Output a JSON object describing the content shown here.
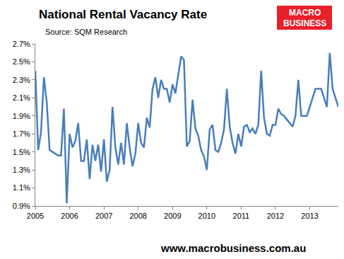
{
  "chart_data": {
    "type": "line",
    "title": "National Rental Vacancy Rate",
    "subtitle": "Source: SQM Research",
    "annotations": [
      "MACRO",
      "BUSINESS",
      "www.macrobusiness.com.au"
    ],
    "color": "#4a7ebb",
    "grid": false,
    "categories": [
      "2005",
      null,
      null,
      null,
      null,
      null,
      null,
      null,
      null,
      null,
      null,
      null,
      "2006",
      null,
      null,
      null,
      null,
      null,
      null,
      null,
      null,
      null,
      null,
      null,
      "2007",
      null,
      null,
      null,
      null,
      null,
      null,
      null,
      null,
      null,
      null,
      null,
      "2008",
      null,
      null,
      null,
      null,
      null,
      null,
      null,
      null,
      null,
      null,
      null,
      "2009",
      null,
      null,
      null,
      null,
      null,
      null,
      null,
      null,
      null,
      null,
      null,
      "2010",
      null,
      null,
      null,
      null,
      null,
      null,
      null,
      null,
      null,
      null,
      null,
      "2011",
      null,
      null,
      null,
      null,
      null,
      null,
      null,
      null,
      null,
      null,
      null,
      "2012",
      null,
      null,
      null,
      null,
      null,
      null,
      null,
      null,
      null,
      null,
      null,
      "2013",
      null,
      null,
      null,
      null,
      null,
      null,
      null,
      null,
      null,
      null
    ],
    "values": [
      2.4,
      1.52,
      1.72,
      2.33,
      2.05,
      1.52,
      1.5,
      1.48,
      1.46,
      1.46,
      1.98,
      0.93,
      1.7,
      1.55,
      1.62,
      1.82,
      1.4,
      1.4,
      1.64,
      1.2,
      1.58,
      1.4,
      1.58,
      1.28,
      1.64,
      1.17,
      1.3,
      2.0,
      1.55,
      1.36,
      1.6,
      1.36,
      1.82,
      1.55,
      1.34,
      1.48,
      1.82,
      1.6,
      1.55,
      1.88,
      1.77,
      2.2,
      2.33,
      2.1,
      2.3,
      2.2,
      2.2,
      2.05,
      2.25,
      2.15,
      2.35,
      2.56,
      2.52,
      1.56,
      1.62,
      2.08,
      1.76,
      1.68,
      1.52,
      1.45,
      1.3,
      1.75,
      1.8,
      1.52,
      1.5,
      1.6,
      1.75,
      2.2,
      1.78,
      1.6,
      1.48,
      1.7,
      1.56,
      1.78,
      1.8,
      1.72,
      1.76,
      1.7,
      1.8,
      2.4,
      1.88,
      1.7,
      1.68,
      1.8,
      1.8,
      1.98,
      1.92,
      1.9,
      1.86,
      1.82,
      1.78,
      1.9,
      2.3,
      1.9,
      1.9,
      1.9,
      2.0,
      2.1,
      2.2,
      2.2,
      2.2,
      2.1,
      2.0,
      2.6,
      2.2,
      2.1,
      2.0
    ],
    "ylim": [
      0.9,
      2.7
    ],
    "yticks": [
      {
        "value": 0.9,
        "label": "0.9%"
      },
      {
        "value": 1.1,
        "label": "1.1%"
      },
      {
        "value": 1.3,
        "label": "1.3%"
      },
      {
        "value": 1.5,
        "label": "1.5%"
      },
      {
        "value": 1.7,
        "label": "1.7%"
      },
      {
        "value": 1.9,
        "label": "1.9%"
      },
      {
        "value": 2.1,
        "label": "2.1%"
      },
      {
        "value": 2.3,
        "label": "2.3%"
      },
      {
        "value": 2.5,
        "label": "2.5%"
      },
      {
        "value": 2.7,
        "label": "2.7%"
      }
    ]
  }
}
